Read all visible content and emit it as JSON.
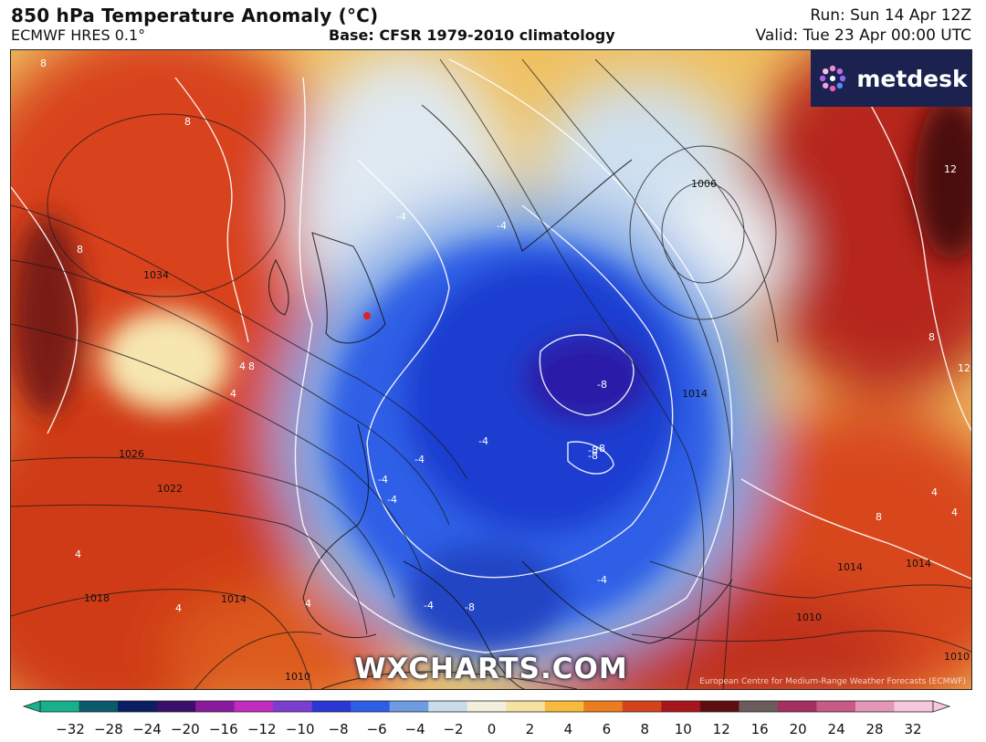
{
  "header": {
    "title": "850 hPa Temperature Anomaly (°C)",
    "model": "ECMWF HRES 0.1°",
    "base": "Base: CFSR 1979-2010 climatology",
    "run": "Run: Sun 14 Apr 12Z",
    "valid": "Valid: Tue 23 Apr 00:00 UTC"
  },
  "logo": {
    "text": "metdesk",
    "icon": "metdesk-flower-icon"
  },
  "watermark": "WXCHARTS.COM",
  "credit": "European Centre for Medium-Range Weather Forecasts (ECMWF)",
  "colors": {
    "cold_core": "#1533b8",
    "warm": "#d8421a",
    "neutral": "#f4f0e2",
    "isobar": "#1a1a1a",
    "anomaly_contour": "#ffffff",
    "city_marker": "#e0221c"
  },
  "map": {
    "isobar_labels": [
      "1034",
      "1026",
      "1022",
      "1018",
      "1014",
      "1010",
      "1006",
      "1014",
      "1014",
      "1014",
      "1010",
      "1010"
    ],
    "anomaly_labels": [
      "8",
      "8",
      "8",
      "8",
      "4",
      "4",
      "4",
      "4",
      "-4",
      "-4",
      "-4",
      "-4",
      "-4",
      "-4",
      "-4",
      "-8",
      "-8",
      "-8",
      "-4",
      "-8",
      "-8",
      "4",
      "8",
      "8",
      "12",
      "12",
      "4",
      "4"
    ]
  },
  "colorbar": {
    "ticks": [
      "−32",
      "−28",
      "−24",
      "−20",
      "−16",
      "−12",
      "−10",
      "−8",
      "−6",
      "−4",
      "−2",
      "0",
      "2",
      "4",
      "6",
      "8",
      "10",
      "12",
      "16",
      "20",
      "24",
      "28",
      "32"
    ],
    "colors": [
      "#17b18a",
      "#0b5a6c",
      "#0b1d63",
      "#3a0e6b",
      "#8a1a9c",
      "#c22bc0",
      "#7a3fd0",
      "#2a37d6",
      "#2f5ee6",
      "#6f9be0",
      "#c9dcec",
      "#f2f0dd",
      "#f7e3a1",
      "#f6ba3c",
      "#ed7c1f",
      "#d8421a",
      "#a8151b",
      "#5e0e10",
      "#6b5b5b",
      "#a33060",
      "#c85a84",
      "#e597b8",
      "#f5c8dc"
    ]
  }
}
